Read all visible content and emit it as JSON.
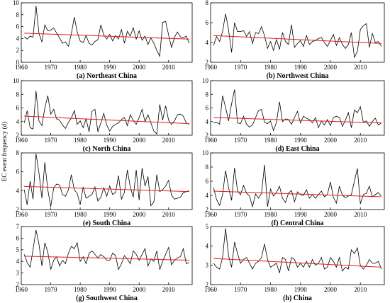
{
  "figure": {
    "ylabel": "EC event frequency (d)"
  },
  "colors": {
    "series": "#000000",
    "trend": "#e41a1c",
    "axis": "#000000"
  },
  "chart_data": [
    {
      "type": "line",
      "title": "(a) Northeast China",
      "xlim": [
        1960,
        2018
      ],
      "ylim": [
        0,
        10
      ],
      "xticks": [
        "1960",
        "1970",
        "1980",
        "1990",
        "2000",
        "2010"
      ],
      "yticks": [
        "0",
        "2",
        "4",
        "6",
        "8",
        "10"
      ],
      "x_start": 1961,
      "values": [
        4.3,
        3.9,
        4.4,
        4.2,
        9.5,
        4.9,
        3.4,
        6.3,
        5.3,
        5.4,
        5.8,
        4.9,
        4.1,
        3.2,
        3.4,
        2.7,
        4.8,
        7.6,
        5.1,
        3.6,
        3.3,
        4.5,
        3.2,
        2.9,
        3.5,
        3.8,
        6.3,
        4.6,
        3.9,
        4.7,
        3.6,
        4.5,
        3.9,
        5.5,
        3.2,
        5.2,
        4.4,
        5.8,
        3.9,
        5.3,
        3.7,
        4.4,
        3.0,
        4.1,
        3.2,
        2.0,
        1.0,
        6.7,
        6.9,
        4.6,
        2.5,
        4.2,
        5.1,
        4.3,
        4.1,
        4.4,
        3.2
      ],
      "trend": [
        4.9,
        3.9
      ],
      "series_name": ""
    },
    {
      "type": "line",
      "title": "(b) Northwest China",
      "xlim": [
        1960,
        2018
      ],
      "ylim": [
        2,
        8
      ],
      "xticks": [
        "1960",
        "1970",
        "1980",
        "1990",
        "2000",
        "2010"
      ],
      "yticks": [
        "2",
        "4",
        "6",
        "8"
      ],
      "x_start": 1961,
      "values": [
        3.7,
        4.6,
        4.1,
        5.1,
        6.9,
        5.3,
        3.0,
        6.0,
        5.1,
        5.1,
        5.2,
        4.6,
        5.1,
        3.9,
        5.0,
        4.9,
        5.6,
        4.7,
        3.4,
        4.1,
        3.2,
        4.3,
        3.3,
        5.0,
        4.1,
        3.8,
        5.8,
        3.5,
        3.9,
        4.2,
        3.6,
        4.7,
        3.8,
        4.1,
        4.2,
        4.4,
        4.5,
        4.0,
        3.6,
        4.2,
        4.8,
        3.7,
        4.5,
        3.8,
        3.4,
        3.8,
        5.0,
        2.5,
        3.1,
        5.3,
        5.7,
        5.9,
        3.5,
        4.9,
        4.0,
        4.1,
        3.6
      ],
      "trend": [
        4.7,
        3.9
      ],
      "series_name": ""
    },
    {
      "type": "line",
      "title": "(c) North China",
      "xlim": [
        1960,
        2018
      ],
      "ylim": [
        2,
        10
      ],
      "xticks": [
        "1960",
        "1970",
        "1980",
        "1990",
        "2000",
        "2010"
      ],
      "yticks": [
        "2",
        "4",
        "6",
        "8",
        "10"
      ],
      "x_start": 1961,
      "values": [
        3.8,
        5.6,
        3.1,
        2.9,
        8.5,
        4.1,
        3.4,
        6.0,
        7.8,
        5.1,
        5.8,
        4.4,
        4.2,
        3.5,
        3.0,
        3.9,
        4.5,
        5.6,
        3.6,
        4.1,
        3.1,
        4.4,
        2.5,
        5.5,
        5.8,
        2.5,
        3.8,
        5.2,
        3.5,
        2.6,
        3.3,
        3.6,
        3.8,
        4.3,
        4.6,
        3.4,
        5.0,
        4.2,
        3.6,
        4.6,
        5.8,
        4.0,
        5.0,
        3.8,
        2.6,
        2.2,
        6.5,
        4.2,
        6.3,
        4.2,
        3.6,
        4.1,
        5.0,
        5.1,
        4.8,
        3.8,
        3.6
      ],
      "trend": [
        4.8,
        3.7
      ],
      "series_name": ""
    },
    {
      "type": "line",
      "title": "(d) East China",
      "xlim": [
        1960,
        2018
      ],
      "ylim": [
        2,
        10
      ],
      "xticks": [
        "1960",
        "1970",
        "1980",
        "1990",
        "2000",
        "2010"
      ],
      "yticks": [
        "2",
        "4",
        "6",
        "8",
        "10"
      ],
      "x_start": 1961,
      "values": [
        3.8,
        3.9,
        3.6,
        7.8,
        6.1,
        4.1,
        6.6,
        8.7,
        3.8,
        3.7,
        4.8,
        3.6,
        3.2,
        3.5,
        4.6,
        5.6,
        5.8,
        3.9,
        3.7,
        4.1,
        2.7,
        3.9,
        6.9,
        4.0,
        4.4,
        4.3,
        3.6,
        4.6,
        5.5,
        3.8,
        4.8,
        4.5,
        4.3,
        3.8,
        4.6,
        3.1,
        4.1,
        3.5,
        4.3,
        3.4,
        4.6,
        4.8,
        4.6,
        3.3,
        4.2,
        5.3,
        3.1,
        5.7,
        5.3,
        6.2,
        3.9,
        4.1,
        3.3,
        4.0,
        4.5,
        3.5,
        3.8
      ],
      "trend": [
        4.6,
        3.8
      ],
      "series_name": ""
    },
    {
      "type": "line",
      "title": "(e) South China",
      "xlim": [
        1960,
        2018
      ],
      "ylim": [
        2,
        8
      ],
      "xticks": [
        "1960",
        "1970",
        "1980",
        "1990",
        "2000",
        "2010"
      ],
      "yticks": [
        "2",
        "4",
        "6",
        "8"
      ],
      "x_start": 1961,
      "values": [
        4.1,
        2.5,
        5.0,
        3.1,
        7.9,
        5.9,
        3.2,
        7.0,
        4.1,
        2.3,
        4.3,
        4.7,
        4.6,
        3.6,
        3.4,
        4.1,
        5.7,
        4.1,
        3.7,
        2.5,
        4.4,
        3.2,
        3.4,
        3.6,
        4.4,
        2.9,
        3.3,
        4.3,
        3.4,
        4.5,
        3.6,
        3.8,
        5.6,
        3.1,
        3.8,
        6.2,
        4.4,
        3.3,
        6.2,
        3.0,
        6.4,
        4.5,
        5.5,
        2.4,
        2.8,
        5.7,
        3.9,
        4.1,
        4.5,
        5.1,
        3.5,
        3.1,
        3.2,
        3.3,
        3.8,
        3.9,
        4.0
      ],
      "trend": [
        4.45,
        3.9
      ],
      "series_name": ""
    },
    {
      "type": "line",
      "title": "(f) Central China",
      "xlim": [
        1960,
        2018
      ],
      "ylim": [
        2,
        10
      ],
      "xticks": [
        "1960",
        "1970",
        "1980",
        "1990",
        "2000",
        "2010"
      ],
      "yticks": [
        "2",
        "4",
        "6",
        "8",
        "10"
      ],
      "x_start": 1961,
      "values": [
        5.1,
        3.4,
        2.6,
        4.1,
        7.5,
        5.1,
        3.3,
        7.9,
        4.6,
        4.1,
        5.4,
        4.3,
        3.9,
        2.4,
        4.2,
        3.6,
        4.3,
        8.3,
        2.4,
        4.9,
        3.9,
        4.4,
        5.3,
        3.6,
        3.0,
        4.3,
        4.7,
        3.1,
        4.5,
        4.1,
        4.0,
        4.8,
        3.6,
        4.1,
        3.6,
        4.1,
        4.6,
        3.8,
        4.1,
        5.9,
        3.7,
        2.9,
        5.3,
        4.0,
        3.7,
        3.9,
        4.1,
        6.0,
        7.8,
        2.8,
        4.1,
        4.3,
        5.3,
        3.8,
        4.1,
        4.4,
        3.9
      ],
      "trend": [
        4.6,
        3.8
      ],
      "series_name": ""
    },
    {
      "type": "line",
      "title": "(g) Southwest China",
      "xlim": [
        1960,
        2018
      ],
      "ylim": [
        2,
        7
      ],
      "xticks": [
        "1960",
        "1970",
        "1980",
        "1990",
        "2000",
        "2010"
      ],
      "yticks": [
        "2",
        "3",
        "4",
        "5",
        "6",
        "7"
      ],
      "x_start": 1961,
      "values": [
        4.6,
        3.9,
        3.5,
        5.0,
        6.7,
        5.5,
        3.6,
        5.6,
        4.8,
        3.3,
        4.1,
        4.4,
        3.6,
        4.1,
        3.8,
        4.7,
        5.3,
        5.1,
        5.6,
        4.0,
        4.4,
        3.8,
        4.7,
        4.9,
        4.6,
        4.3,
        4.6,
        4.4,
        4.1,
        4.1,
        4.7,
        4.5,
        3.3,
        3.8,
        4.5,
        4.2,
        3.8,
        4.9,
        4.6,
        4.1,
        4.6,
        5.1,
        3.6,
        4.2,
        4.0,
        4.9,
        3.3,
        4.0,
        4.6,
        5.2,
        3.7,
        4.1,
        4.3,
        4.4,
        5.1,
        3.8,
        3.9
      ],
      "trend": [
        4.45,
        4.1
      ],
      "series_name": ""
    },
    {
      "type": "line",
      "title": "(h) China",
      "xlim": [
        1960,
        2018
      ],
      "ylim": [
        2,
        5
      ],
      "xticks": [
        "1960",
        "1970",
        "1980",
        "1990",
        "2000",
        "2010"
      ],
      "yticks": [
        "2",
        "3",
        "4",
        "5"
      ],
      "x_start": 1961,
      "values": [
        3.1,
        2.9,
        2.8,
        3.4,
        4.9,
        3.5,
        2.9,
        4.2,
        3.6,
        3.1,
        3.3,
        3.4,
        3.1,
        2.8,
        3.1,
        3.2,
        3.4,
        4.1,
        3.3,
        2.9,
        3.0,
        3.1,
        2.6,
        3.4,
        3.3,
        2.7,
        3.4,
        3.3,
        2.9,
        3.1,
        2.9,
        3.2,
        2.9,
        3.3,
        3.0,
        3.1,
        3.4,
        2.8,
        2.9,
        3.4,
        3.2,
        2.9,
        3.4,
        2.7,
        2.9,
        2.8,
        3.8,
        3.6,
        3.9,
        3.0,
        2.8,
        3.0,
        3.3,
        3.1,
        3.1,
        3.2,
        2.8
      ],
      "trend": [
        3.35,
        2.9
      ],
      "series_name": ""
    }
  ]
}
